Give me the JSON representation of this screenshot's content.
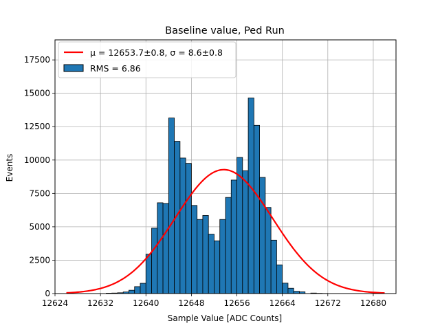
{
  "chart_data": {
    "type": "bar",
    "title": "Baseline value, Ped Run",
    "xlabel": "Sample Value [ADC Counts]",
    "ylabel": "Events",
    "xlim": [
      12624,
      12684
    ],
    "ylim": [
      0,
      19000
    ],
    "xticks": [
      "12624",
      "12632",
      "12640",
      "12648",
      "12656",
      "12664",
      "12672",
      "12680"
    ],
    "yticks": [
      "0",
      "2500",
      "5000",
      "7500",
      "10000",
      "12500",
      "15000",
      "17500"
    ],
    "grid": true,
    "legend_position": "top-left",
    "bin_width": 1,
    "bins": [
      {
        "x0": 12633,
        "count": 30
      },
      {
        "x0": 12634,
        "count": 40
      },
      {
        "x0": 12635,
        "count": 60
      },
      {
        "x0": 12636,
        "count": 120
      },
      {
        "x0": 12637,
        "count": 250
      },
      {
        "x0": 12638,
        "count": 520
      },
      {
        "x0": 12639,
        "count": 770
      },
      {
        "x0": 12640,
        "count": 2950
      },
      {
        "x0": 12641,
        "count": 4900
      },
      {
        "x0": 12642,
        "count": 6800
      },
      {
        "x0": 12643,
        "count": 6750
      },
      {
        "x0": 12644,
        "count": 13150
      },
      {
        "x0": 12645,
        "count": 11400
      },
      {
        "x0": 12646,
        "count": 10150
      },
      {
        "x0": 12647,
        "count": 9750
      },
      {
        "x0": 12648,
        "count": 6600
      },
      {
        "x0": 12649,
        "count": 5550
      },
      {
        "x0": 12650,
        "count": 5850
      },
      {
        "x0": 12651,
        "count": 4450
      },
      {
        "x0": 12652,
        "count": 3950
      },
      {
        "x0": 12653,
        "count": 5550
      },
      {
        "x0": 12654,
        "count": 7200
      },
      {
        "x0": 12655,
        "count": 8500
      },
      {
        "x0": 12656,
        "count": 10200
      },
      {
        "x0": 12657,
        "count": 9200
      },
      {
        "x0": 12658,
        "count": 14650
      },
      {
        "x0": 12659,
        "count": 12600
      },
      {
        "x0": 12660,
        "count": 8700
      },
      {
        "x0": 12661,
        "count": 6450
      },
      {
        "x0": 12662,
        "count": 4000
      },
      {
        "x0": 12663,
        "count": 2150
      },
      {
        "x0": 12664,
        "count": 780
      },
      {
        "x0": 12665,
        "count": 400
      },
      {
        "x0": 12666,
        "count": 170
      },
      {
        "x0": 12667,
        "count": 130
      },
      {
        "x0": 12669,
        "count": 40
      },
      {
        "x0": 12670,
        "count": 20
      },
      {
        "x0": 12671,
        "count": 10
      }
    ],
    "series": [
      {
        "name": "μ = 12653.7±0.8, σ = 8.6±0.8",
        "kind": "line",
        "color": "#ff0000",
        "gaussian": {
          "amplitude": 9280,
          "mean": 12653.7,
          "sigma": 8.6
        },
        "x_range": [
          12626,
          12682
        ]
      },
      {
        "name": "RMS = 6.86",
        "kind": "histogram",
        "color": "#1f77b4",
        "edge_color": "#000000"
      }
    ]
  }
}
